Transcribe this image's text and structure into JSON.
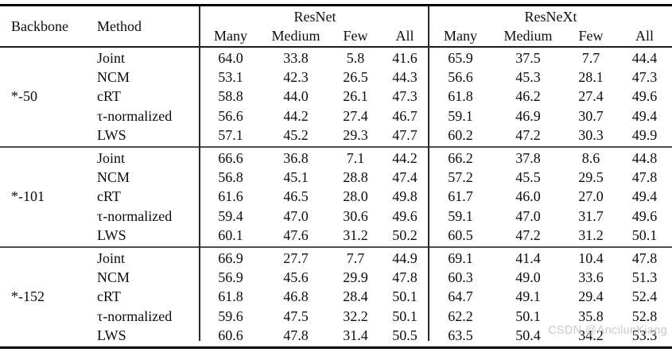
{
  "page": {
    "background_color": "#ffffff",
    "text_color": "#0d0d0d",
    "rule_color": "#000000",
    "watermark_color": "#c9c5c5"
  },
  "table": {
    "header": {
      "backbone": "Backbone",
      "method": "Method",
      "groups": [
        "ResNet",
        "ResNeXt"
      ]
    },
    "sub_headers": [
      "Many",
      "Medium",
      "Few",
      "All"
    ],
    "blocks": [
      {
        "backbone": "*-50",
        "rows": [
          {
            "method": "Joint",
            "resnet": [
              "64.0",
              "33.8",
              "5.8",
              "41.6"
            ],
            "resnext": [
              "65.9",
              "37.5",
              "7.7",
              "44.4"
            ]
          },
          {
            "method": "NCM",
            "resnet": [
              "53.1",
              "42.3",
              "26.5",
              "44.3"
            ],
            "resnext": [
              "56.6",
              "45.3",
              "28.1",
              "47.3"
            ]
          },
          {
            "method": "cRT",
            "resnet": [
              "58.8",
              "44.0",
              "26.1",
              "47.3"
            ],
            "resnext": [
              "61.8",
              "46.2",
              "27.4",
              "49.6"
            ]
          },
          {
            "method": "τ-normalized",
            "resnet": [
              "56.6",
              "44.2",
              "27.4",
              "46.7"
            ],
            "resnext": [
              "59.1",
              "46.9",
              "30.7",
              "49.4"
            ]
          },
          {
            "method": "LWS",
            "resnet": [
              "57.1",
              "45.2",
              "29.3",
              "47.7"
            ],
            "resnext": [
              "60.2",
              "47.2",
              "30.3",
              "49.9"
            ]
          }
        ]
      },
      {
        "backbone": "*-101",
        "rows": [
          {
            "method": "Joint",
            "resnet": [
              "66.6",
              "36.8",
              "7.1",
              "44.2"
            ],
            "resnext": [
              "66.2",
              "37.8",
              "8.6",
              "44.8"
            ]
          },
          {
            "method": "NCM",
            "resnet": [
              "56.8",
              "45.1",
              "28.8",
              "47.4"
            ],
            "resnext": [
              "57.2",
              "45.5",
              "29.5",
              "47.8"
            ]
          },
          {
            "method": "cRT",
            "resnet": [
              "61.6",
              "46.5",
              "28.0",
              "49.8"
            ],
            "resnext": [
              "61.7",
              "46.0",
              "27.0",
              "49.4"
            ]
          },
          {
            "method": "τ-normalized",
            "resnet": [
              "59.4",
              "47.0",
              "30.6",
              "49.6"
            ],
            "resnext": [
              "59.1",
              "47.0",
              "31.7",
              "49.6"
            ]
          },
          {
            "method": "LWS",
            "resnet": [
              "60.1",
              "47.6",
              "31.2",
              "50.2"
            ],
            "resnext": [
              "60.5",
              "47.2",
              "31.2",
              "50.1"
            ]
          }
        ]
      },
      {
        "backbone": "*-152",
        "rows": [
          {
            "method": "Joint",
            "resnet": [
              "66.9",
              "27.7",
              "7.7",
              "44.9"
            ],
            "resnext": [
              "69.1",
              "41.4",
              "10.4",
              "47.8"
            ]
          },
          {
            "method": "NCM",
            "resnet": [
              "56.9",
              "45.6",
              "29.9",
              "47.8"
            ],
            "resnext": [
              "60.3",
              "49.0",
              "33.6",
              "51.3"
            ]
          },
          {
            "method": "cRT",
            "resnet": [
              "61.8",
              "46.8",
              "28.4",
              "50.1"
            ],
            "resnext": [
              "64.7",
              "49.1",
              "29.4",
              "52.4"
            ]
          },
          {
            "method": "τ-normalized",
            "resnet": [
              "59.6",
              "47.5",
              "32.2",
              "50.1"
            ],
            "resnext": [
              "62.2",
              "50.1",
              "35.8",
              "52.8"
            ]
          },
          {
            "method": "LWS",
            "resnet": [
              "60.6",
              "47.8",
              "31.4",
              "50.5"
            ],
            "resnext": [
              "63.5",
              "50.4",
              "34.2",
              "53.3"
            ]
          }
        ]
      }
    ],
    "watermark": "CSDN @AncilunKiang"
  }
}
